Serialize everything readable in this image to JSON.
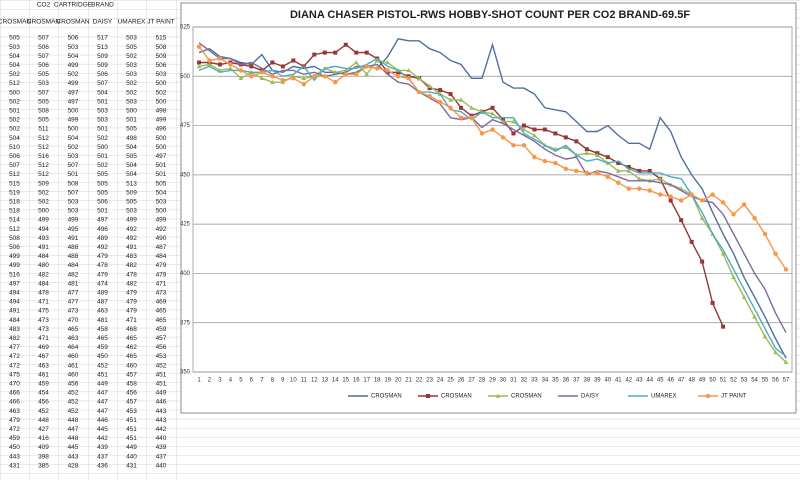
{
  "table": {
    "group_labels": [
      "CO2",
      "CARTRIDGE",
      "BRAND"
    ],
    "columns": [
      "CROSMAN",
      "CROSMAN",
      "CROSMAN",
      "DAISY",
      "UMAREX",
      "JT PAINT"
    ],
    "rows": [
      [
        505,
        507,
        506,
        517,
        503,
        515
      ],
      [
        503,
        506,
        503,
        513,
        505,
        508
      ],
      [
        504,
        507,
        504,
        509,
        502,
        509
      ],
      [
        504,
        506,
        499,
        509,
        503,
        506
      ],
      [
        502,
        505,
        502,
        506,
        503,
        503
      ],
      [
        512,
        503,
        499,
        507,
        502,
        500
      ],
      [
        500,
        507,
        497,
        504,
        502,
        502
      ],
      [
        502,
        505,
        497,
        501,
        503,
        500
      ],
      [
        501,
        508,
        500,
        503,
        500,
        498
      ],
      [
        502,
        505,
        499,
        503,
        501,
        499
      ],
      [
        502,
        511,
        500,
        501,
        505,
        496
      ],
      [
        504,
        512,
        504,
        502,
        498,
        500
      ],
      [
        510,
        512,
        502,
        500,
        504,
        500
      ],
      [
        506,
        516,
        503,
        501,
        505,
        497
      ],
      [
        507,
        512,
        507,
        502,
        504,
        501
      ],
      [
        512,
        512,
        501,
        505,
        504,
        501
      ],
      [
        515,
        509,
        508,
        505,
        513,
        505
      ],
      [
        519,
        502,
        507,
        505,
        509,
        504
      ],
      [
        518,
        502,
        503,
        506,
        505,
        503
      ],
      [
        518,
        500,
        503,
        501,
        503,
        500
      ],
      [
        514,
        499,
        499,
        497,
        499,
        499
      ],
      [
        512,
        494,
        495,
        496,
        492,
        492
      ],
      [
        508,
        493,
        491,
        489,
        492,
        490
      ],
      [
        506,
        491,
        488,
        492,
        491,
        487
      ],
      [
        499,
        484,
        488,
        479,
        483,
        484
      ],
      [
        499,
        480,
        484,
        478,
        482,
        479
      ],
      [
        516,
        482,
        482,
        479,
        478,
        479
      ],
      [
        497,
        484,
        481,
        474,
        482,
        471
      ],
      [
        494,
        478,
        477,
        489,
        479,
        473
      ],
      [
        494,
        471,
        477,
        487,
        479,
        469
      ],
      [
        491,
        475,
        473,
        463,
        479,
        465
      ],
      [
        484,
        473,
        470,
        481,
        471,
        465
      ],
      [
        483,
        473,
        465,
        458,
        468,
        459
      ],
      [
        482,
        471,
        463,
        465,
        465,
        457
      ],
      [
        477,
        469,
        464,
        459,
        462,
        456
      ],
      [
        472,
        467,
        460,
        450,
        465,
        453
      ],
      [
        472,
        463,
        461,
        452,
        460,
        452
      ],
      [
        475,
        461,
        460,
        451,
        457,
        451
      ],
      [
        470,
        459,
        456,
        449,
        458,
        451
      ],
      [
        466,
        454,
        452,
        447,
        456,
        449
      ],
      [
        466,
        456,
        452,
        447,
        457,
        446
      ],
      [
        463,
        452,
        452,
        447,
        453,
        443
      ],
      [
        479,
        448,
        448,
        446,
        451,
        443
      ],
      [
        472,
        427,
        447,
        445,
        451,
        442
      ],
      [
        459,
        416,
        448,
        442,
        451,
        440
      ],
      [
        450,
        409,
        445,
        439,
        449,
        439
      ],
      [
        443,
        398,
        443,
        437,
        440,
        437
      ],
      [
        431,
        385,
        428,
        436,
        431,
        440
      ]
    ]
  },
  "chart_data": {
    "type": "line",
    "title": "DIANA CHASER PISTOL-RWS HOBBY-SHOT COUNT PER CO2 BRAND-69.5F",
    "categories": [
      1,
      2,
      3,
      4,
      5,
      6,
      7,
      8,
      9,
      10,
      11,
      12,
      13,
      14,
      15,
      16,
      17,
      18,
      19,
      20,
      21,
      22,
      23,
      24,
      25,
      26,
      27,
      28,
      29,
      30,
      31,
      32,
      33,
      34,
      35,
      36,
      37,
      38,
      39,
      40,
      41,
      42,
      43,
      44,
      45,
      46,
      47,
      48,
      49,
      50,
      51,
      52,
      53,
      54,
      55,
      56,
      57
    ],
    "ylim": [
      350,
      525
    ],
    "yticks": [
      350,
      375,
      400,
      425,
      450,
      475,
      500,
      525
    ],
    "grid": true,
    "legend": "bottom",
    "series": [
      {
        "name": "CROSMAN",
        "color": "#4f6fa0",
        "marker": "none",
        "values": [
          512,
          514,
          510,
          509,
          507,
          506,
          511,
          503,
          502,
          505,
          504,
          505,
          502,
          502,
          501,
          502,
          505,
          504,
          510,
          519,
          518,
          518,
          514,
          512,
          508,
          506,
          499,
          499,
          516,
          497,
          494,
          494,
          491,
          484,
          483,
          482,
          477,
          472,
          472,
          475,
          470,
          466,
          466,
          463,
          479,
          472,
          459,
          450,
          443,
          431,
          420,
          410,
          398,
          388,
          378,
          367,
          357
        ]
      },
      {
        "name": "CROSMAN",
        "color": "#953735",
        "marker": "square",
        "values": [
          507,
          507,
          506,
          507,
          506,
          505,
          503,
          507,
          505,
          508,
          505,
          511,
          512,
          512,
          516,
          512,
          512,
          509,
          502,
          502,
          500,
          499,
          494,
          493,
          491,
          484,
          480,
          482,
          484,
          478,
          471,
          475,
          473,
          473,
          471,
          469,
          467,
          463,
          461,
          459,
          456,
          454,
          452,
          452,
          448,
          437,
          427,
          416,
          406,
          385,
          373,
          null,
          null,
          null,
          null,
          null,
          null
        ]
      },
      {
        "name": "CROSMAN",
        "color": "#9bbb59",
        "marker": "triangle",
        "values": [
          505,
          506,
          503,
          504,
          499,
          502,
          499,
          497,
          497,
          500,
          499,
          500,
          504,
          502,
          503,
          507,
          501,
          508,
          507,
          503,
          503,
          499,
          495,
          491,
          488,
          488,
          484,
          482,
          481,
          477,
          477,
          473,
          470,
          465,
          463,
          464,
          460,
          461,
          460,
          456,
          452,
          452,
          448,
          447,
          448,
          445,
          443,
          440,
          428,
          420,
          410,
          398,
          388,
          378,
          368,
          360,
          355
        ]
      },
      {
        "name": "DAISY",
        "color": "#7f6a9f",
        "marker": "none",
        "values": [
          517,
          513,
          509,
          509,
          506,
          507,
          504,
          501,
          503,
          503,
          501,
          502,
          500,
          501,
          502,
          505,
          505,
          506,
          501,
          497,
          496,
          492,
          489,
          486,
          479,
          478,
          479,
          474,
          478,
          476,
          473,
          470,
          467,
          463,
          460,
          458,
          459,
          450,
          452,
          451,
          449,
          447,
          447,
          447,
          446,
          445,
          442,
          439,
          437,
          436,
          430,
          420,
          410,
          400,
          392,
          380,
          370
        ]
      },
      {
        "name": "UMAREX",
        "color": "#4bacc6",
        "marker": "none",
        "values": [
          503,
          505,
          502,
          503,
          503,
          502,
          502,
          503,
          500,
          501,
          505,
          498,
          504,
          505,
          504,
          504,
          506,
          509,
          505,
          503,
          499,
          492,
          492,
          491,
          483,
          482,
          478,
          482,
          479,
          479,
          479,
          471,
          468,
          465,
          462,
          465,
          460,
          457,
          458,
          456,
          457,
          453,
          451,
          451,
          451,
          449,
          448,
          440,
          431,
          420,
          412,
          402,
          392,
          382,
          372,
          362,
          358
        ]
      },
      {
        "name": "JT PAINT",
        "color": "#f79646",
        "marker": "circle",
        "values": [
          515,
          508,
          509,
          506,
          503,
          500,
          502,
          500,
          498,
          499,
          496,
          500,
          500,
          497,
          501,
          501,
          505,
          504,
          503,
          500,
          499,
          492,
          490,
          487,
          484,
          479,
          479,
          471,
          473,
          469,
          465,
          465,
          459,
          457,
          456,
          453,
          452,
          451,
          451,
          449,
          446,
          443,
          443,
          442,
          440,
          439,
          437,
          440,
          437,
          440,
          436,
          430,
          435,
          428,
          420,
          410,
          402
        ]
      }
    ]
  }
}
